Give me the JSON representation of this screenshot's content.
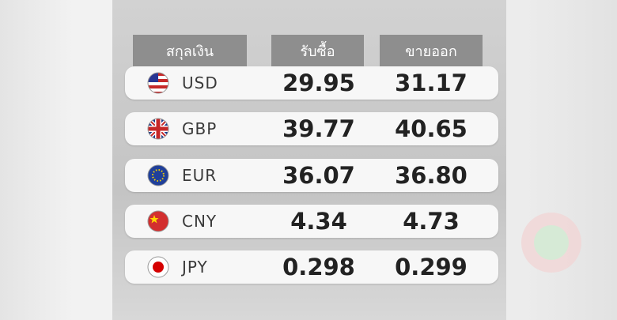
{
  "table": {
    "headers": [
      "สกุลเงิน",
      "รับซื้อ",
      "ขายออก"
    ],
    "rows": [
      [
        "USD",
        "29.95",
        "31.17"
      ],
      [
        "GBP",
        "39.77",
        "40.65"
      ],
      [
        "EUR",
        "36.07",
        "36.80"
      ],
      [
        "CNY",
        "4.34",
        "4.73"
      ],
      [
        "JPY",
        "0.298",
        "0.299"
      ]
    ]
  }
}
